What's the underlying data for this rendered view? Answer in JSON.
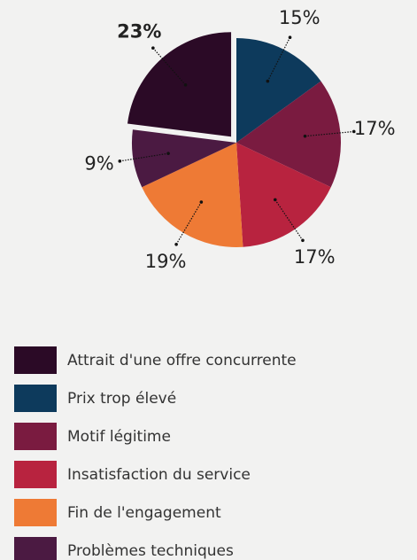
{
  "chart_data": {
    "type": "pie",
    "categories": [
      "Attrait d'une offre concurrente",
      "Prix trop élevé",
      "Motif légitime",
      "Insatisfaction du service",
      "Fin de l'engagement",
      "Problèmes techniques"
    ],
    "values": [
      23,
      15,
      17,
      17,
      19,
      9
    ],
    "value_labels": [
      "23%",
      "15%",
      "17%",
      "17%",
      "19%",
      "9%"
    ],
    "colors": [
      "#2b0a26",
      "#0d3a5c",
      "#7a1b40",
      "#b8233f",
      "#ee7a35",
      "#4b1a42"
    ],
    "legend": "bottom"
  }
}
